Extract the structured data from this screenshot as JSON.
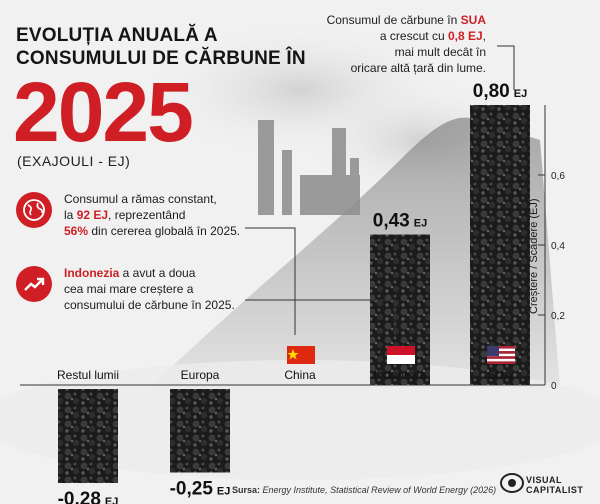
{
  "title": "EVOLUȚIA ANUALĂ A CONSUMULUI DE CĂRBUNE ÎN",
  "year": "2025",
  "unit_label": "(EXAJOULI - EJ)",
  "notes": {
    "china": {
      "text_1": "Consumul a rămas constant,",
      "text_2a": "la ",
      "highlight_1": "92 EJ",
      "text_2b": ", reprezentând",
      "highlight_2": "56%",
      "text_3": " din cererea globală în 2025.",
      "icon": "globe-icon"
    },
    "indonesia": {
      "highlight": "Indonezia",
      "text_1": " a avut a doua",
      "text_2": "cea mai mare creștere a",
      "text_3": "consumului de cărbune în 2025.",
      "icon": "trend-up-icon"
    },
    "usa": {
      "text_1": "Consumul de cărbune în ",
      "highlight_1": "SUA",
      "text_2a": "a crescut cu ",
      "highlight_2": "0,8 EJ",
      "text_2b": ",",
      "text_3": "mai mult decât în țară",
      "text_3_full": "mai mult decât în",
      "text_4": "oricare altă țară din lume."
    }
  },
  "chart_data": {
    "type": "bar",
    "categories": [
      "Restul lumii",
      "Europa",
      "China",
      "Indonezia",
      "SUA"
    ],
    "values": [
      -0.28,
      -0.25,
      0.0,
      0.43,
      0.8
    ],
    "value_labels": [
      "-0,28",
      "-0,25",
      "",
      "0,43",
      "0,80"
    ],
    "value_unit": "EJ",
    "ylabel": "Creștere / Scădere (EJ)",
    "yticks": [
      "0",
      "0,2",
      "0,4",
      "0,6"
    ],
    "ytick_values": [
      0,
      0.2,
      0.4,
      0.6
    ],
    "ylim": [
      -0.3,
      0.8
    ],
    "grid": false,
    "bar_color": "#1e1e1e"
  },
  "flags": {
    "China": "china-flag-icon",
    "Indonezia": "indonesia-flag-icon",
    "SUA": "usa-flag-icon"
  },
  "source": {
    "label": "Sursa:",
    "text": "Energy Institute, Statistical Review of World Energy (2026)"
  },
  "logo": {
    "line1": "VISUAL",
    "line2": "CAPITALIST"
  },
  "colors": {
    "accent": "#cf1f25",
    "bar": "#1e1e1e"
  }
}
